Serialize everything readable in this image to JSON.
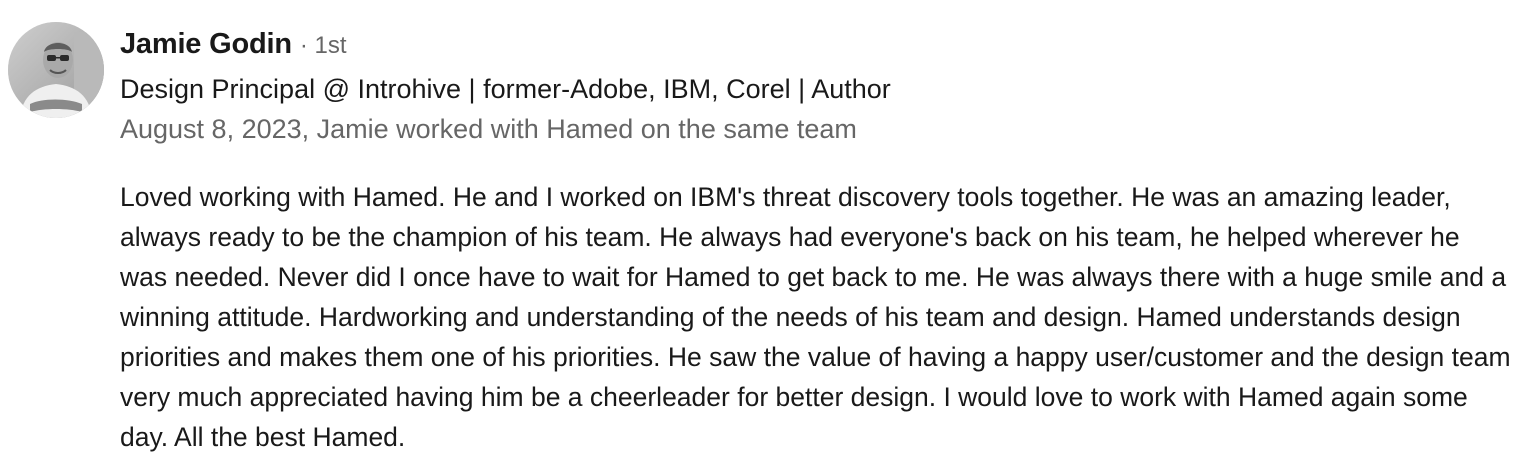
{
  "recommender": {
    "name": "Jamie Godin",
    "degree": "· 1st",
    "headline": "Design Principal @ Introhive | former-Adobe, IBM, Corel | Author",
    "meta": "August 8, 2023, Jamie worked with Hamed on the same team",
    "avatar_icon": "profile-photo"
  },
  "recommendation": {
    "text": "Loved working with Hamed. He and I worked on IBM's threat discovery tools together. He was an amazing leader, always ready to be the champion of his team. He always had everyone's back on his team, he helped wherever he was needed. Never did I once have to wait for Hamed to get back to me. He was always there with a huge smile and a winning attitude. Hardworking and understanding of the needs of his team and design. Hamed understands design priorities and makes them one of his priorities. He saw the value of having a happy user/customer and the design team very much appreciated having him be a cheerleader for better design. I would love to work with Hamed again some day. All the best Hamed."
  },
  "colors": {
    "primary_text": "#191919",
    "secondary_text": "#666666",
    "background": "#ffffff"
  }
}
